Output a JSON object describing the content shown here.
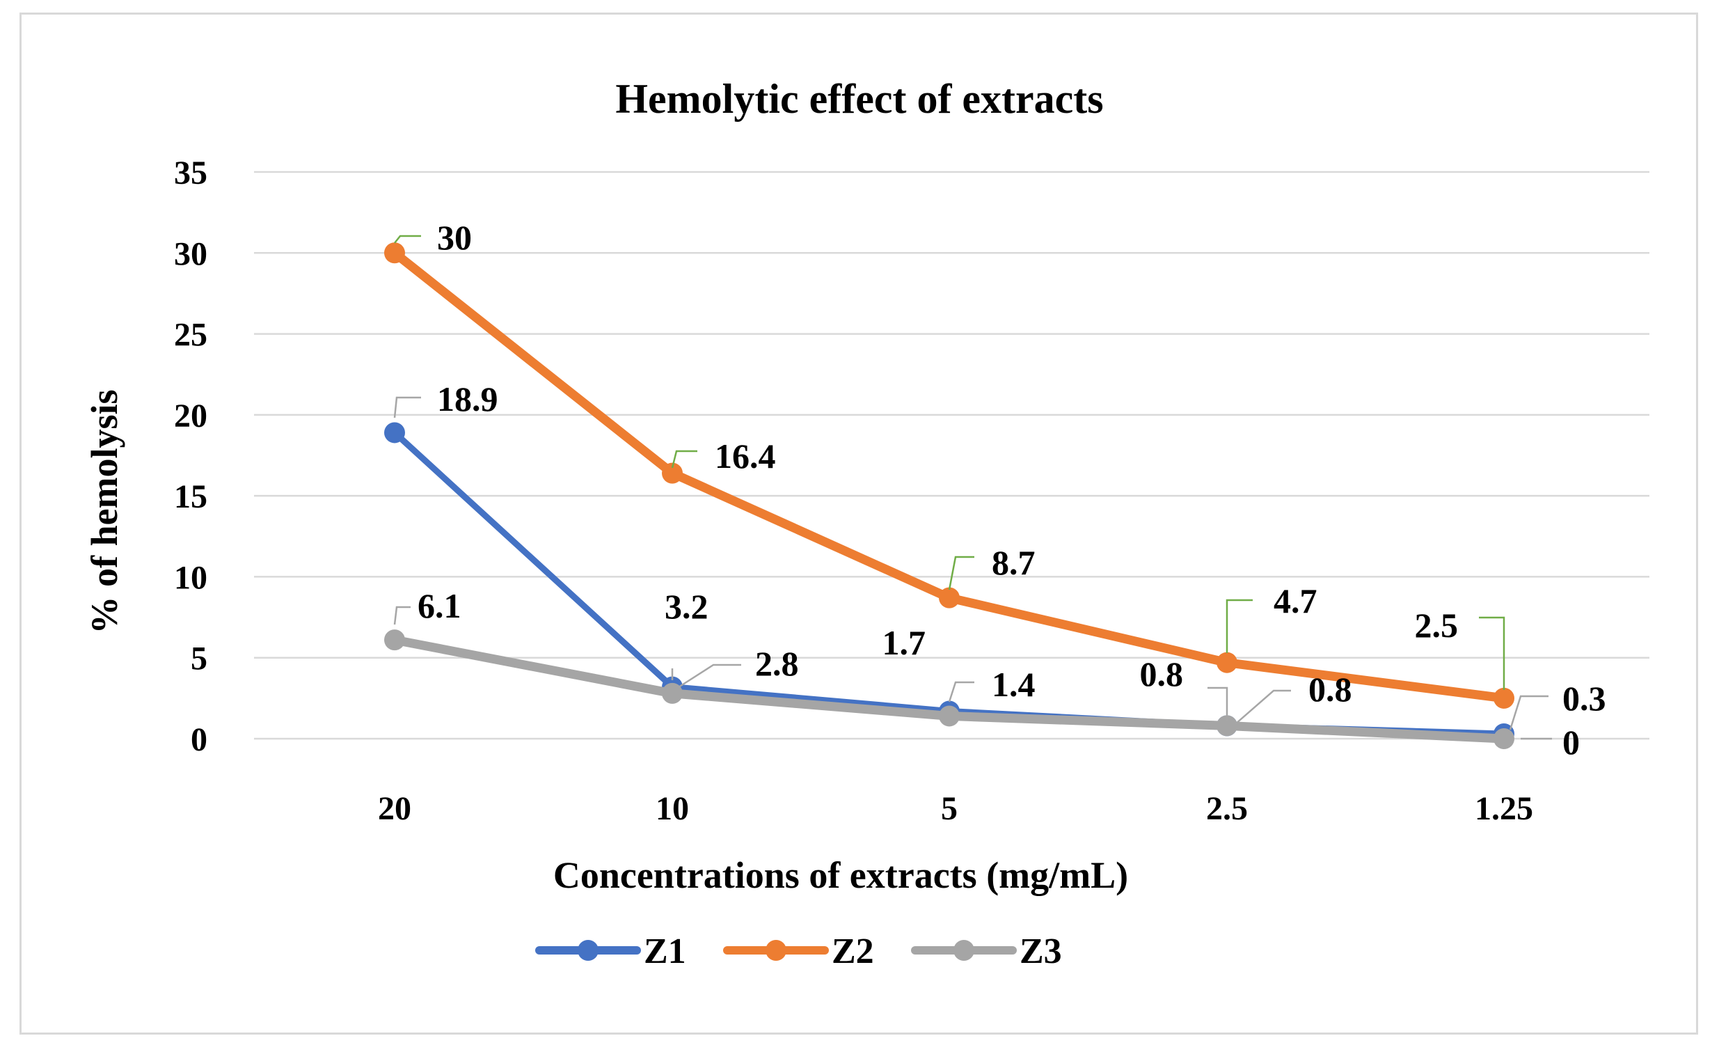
{
  "chart_data": {
    "type": "line",
    "title": "Hemolytic effect of extracts",
    "xlabel": "Concentrations of extracts (mg/mL)",
    "ylabel": "% of hemolysis",
    "categories": [
      "20",
      "10",
      "5",
      "2.5",
      "1.25"
    ],
    "ylim": [
      0,
      35
    ],
    "yticks": [
      "0",
      "5",
      "10",
      "15",
      "20",
      "25",
      "30",
      "35"
    ],
    "grid": true,
    "legend_position": "bottom",
    "series": [
      {
        "name": "Z1",
        "color": "#4472c4",
        "values": [
          18.9,
          3.2,
          1.7,
          0.8,
          0.3
        ],
        "labels": [
          "18.9",
          "3.2",
          "1.7",
          "0.8",
          "0.3"
        ]
      },
      {
        "name": "Z2",
        "color": "#ed7d31",
        "values": [
          30,
          16.4,
          8.7,
          4.7,
          2.5
        ],
        "labels": [
          "30",
          "16.4",
          "8.7",
          "4.7",
          "2.5"
        ]
      },
      {
        "name": "Z3",
        "color": "#a5a5a5",
        "values": [
          6.1,
          2.8,
          1.4,
          0.8,
          0
        ],
        "labels": [
          "6.1",
          "2.8",
          "1.4",
          "0.8",
          "0"
        ]
      }
    ]
  }
}
